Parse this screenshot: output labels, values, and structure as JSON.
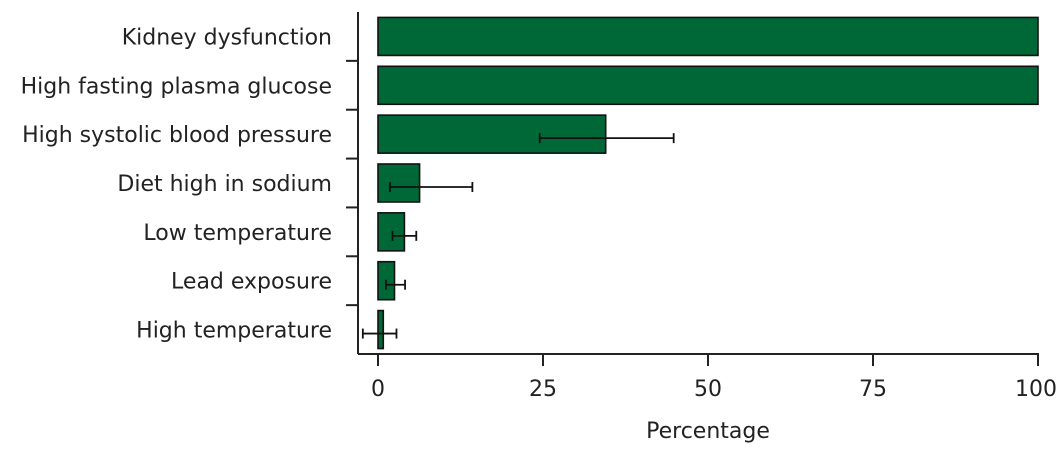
{
  "chart_data": {
    "type": "bar",
    "orientation": "horizontal",
    "categories": [
      "Kidney dysfunction",
      "High fasting plasma glucose",
      "High systolic blood pressure",
      "Diet high in sodium",
      "Low temperature",
      "Lead exposure",
      "High temperature"
    ],
    "values": [
      100,
      100,
      34.5,
      6.3,
      4.0,
      2.5,
      0.8
    ],
    "error_low": [
      null,
      null,
      24.5,
      1.8,
      2.2,
      1.2,
      -2.3
    ],
    "error_high": [
      null,
      null,
      44.8,
      14.3,
      5.8,
      4.1,
      2.8
    ],
    "xlabel": "Percentage",
    "ylabel": "",
    "title": "",
    "xlim": [
      -3,
      100
    ],
    "xticks": [
      0,
      25,
      50,
      75,
      100
    ],
    "bar_color": "#006837",
    "grid": false,
    "legend": "none"
  }
}
